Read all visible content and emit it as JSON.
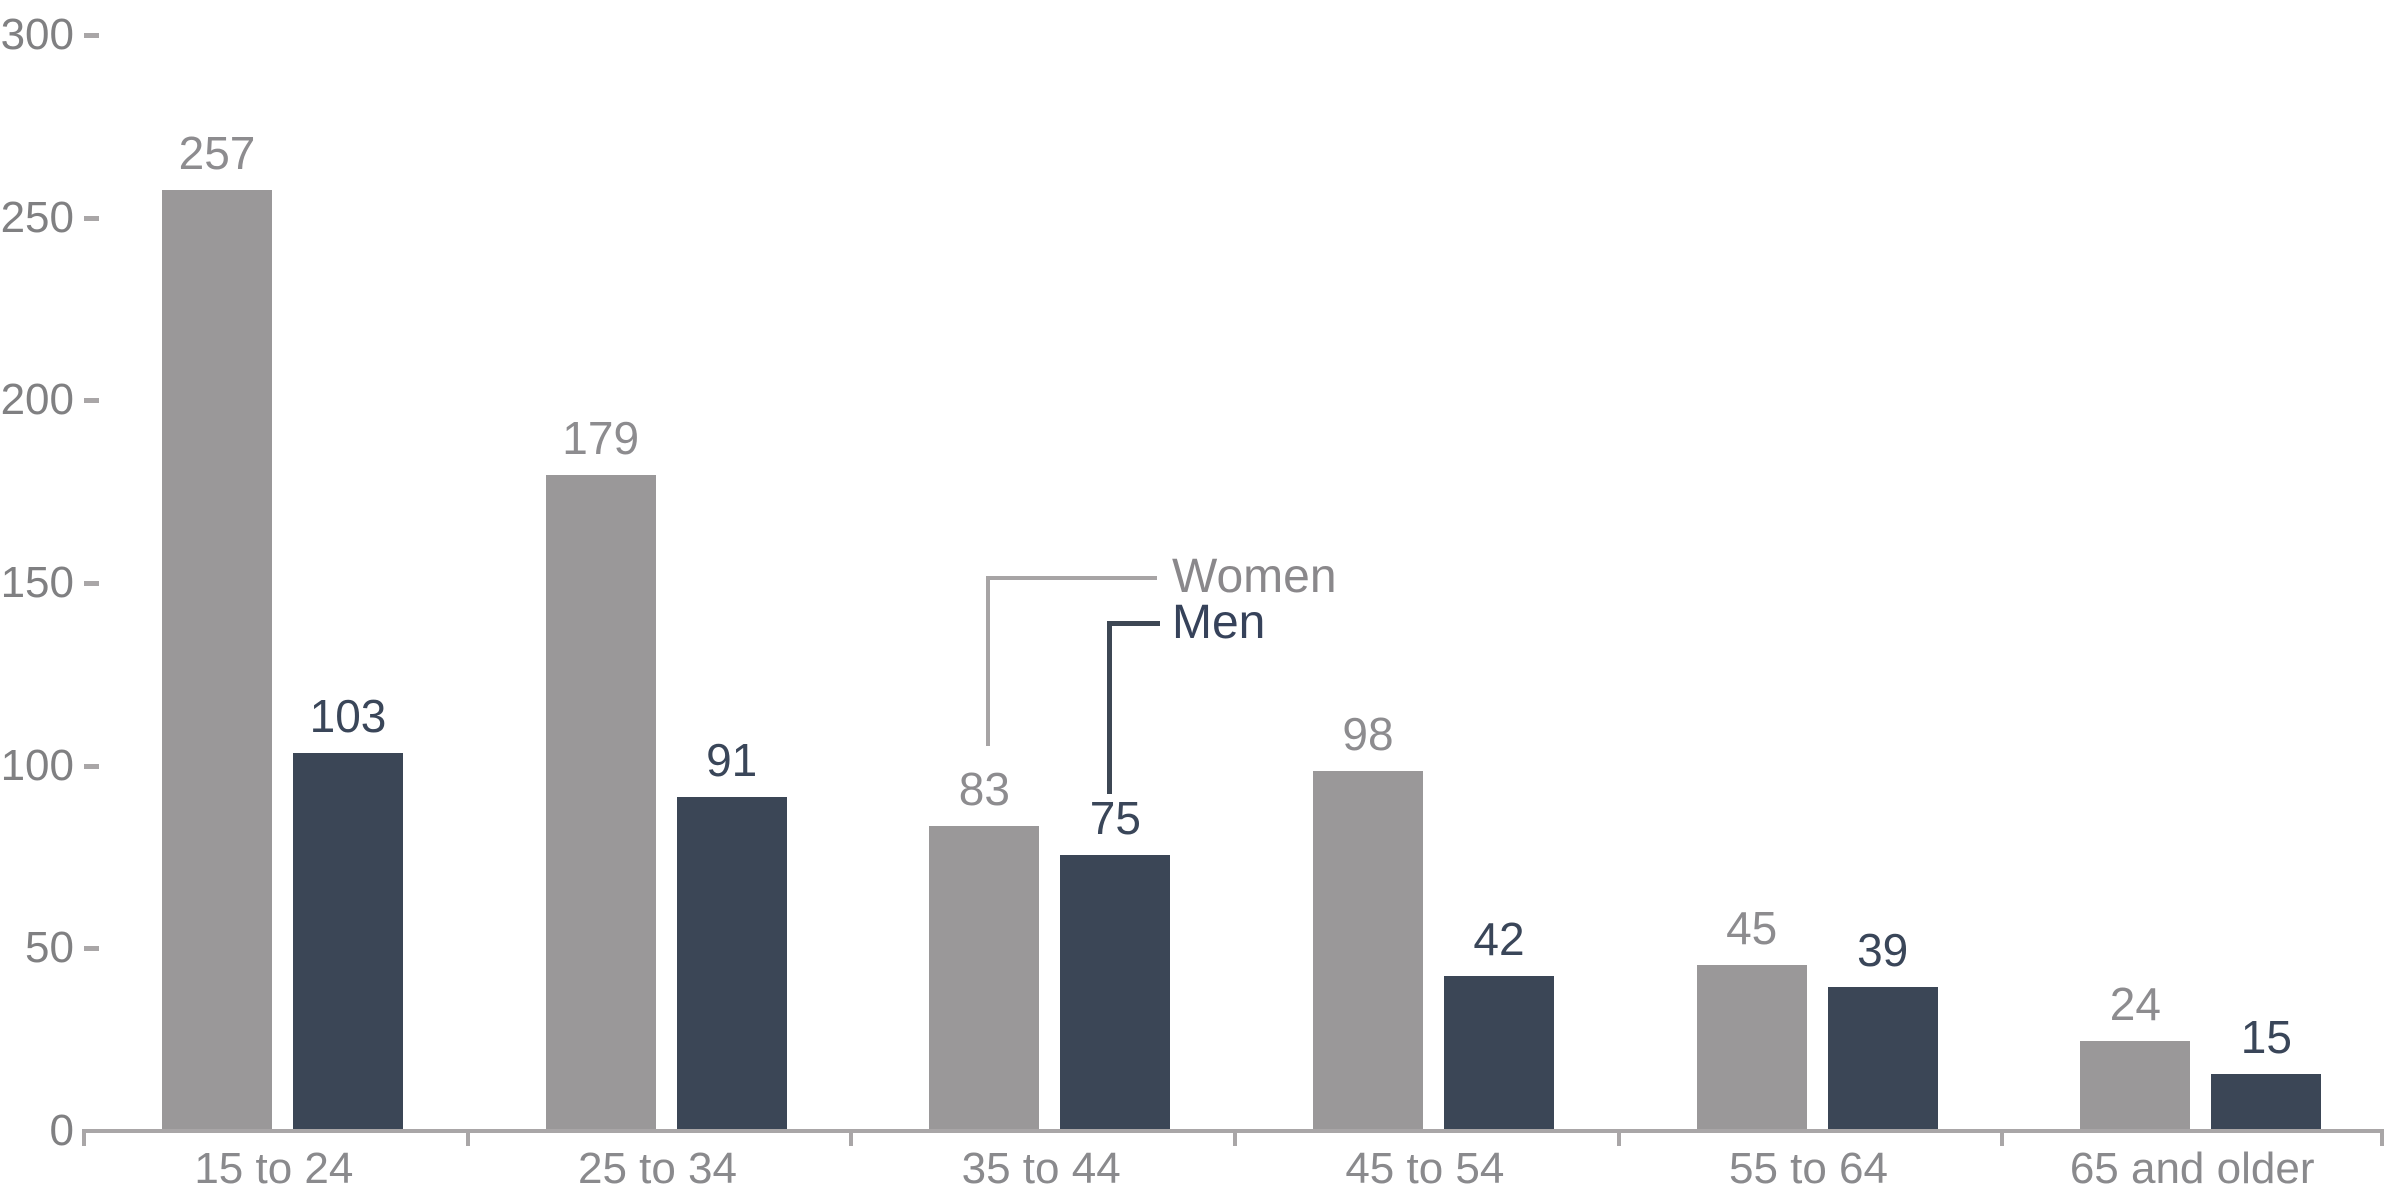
{
  "chart_data": {
    "type": "bar",
    "title": "",
    "xlabel": "",
    "ylabel": "",
    "categories": [
      "15 to 24",
      "25 to 34",
      "35 to 44",
      "45 to 54",
      "55 to 64",
      "65 and older"
    ],
    "series": [
      {
        "name": "Women",
        "values": [
          257,
          179,
          83,
          98,
          45,
          24
        ],
        "color": "#9a9899",
        "label_color": "#8d8c8f"
      },
      {
        "name": "Men",
        "values": [
          103,
          91,
          75,
          42,
          39,
          15
        ],
        "color": "#3b4656",
        "label_color": "#3a4659"
      }
    ],
    "ylim": [
      0,
      300
    ],
    "yticks": [
      0,
      50,
      100,
      150,
      200,
      250,
      300
    ],
    "grid": false,
    "legend_position": "callout-annotations-near-35-to-44",
    "axis_color": "#a9a6a7",
    "ytick_label_color": "#808082",
    "xtick_label_color": "#8a8a8d",
    "women_callout_color": "#a7a4a5",
    "men_callout_color": "#3d4754"
  }
}
